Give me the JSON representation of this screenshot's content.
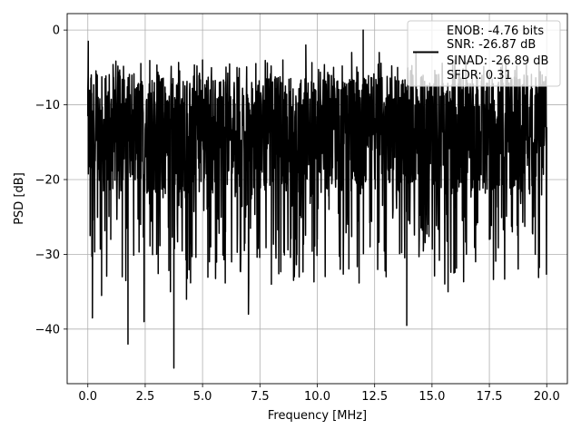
{
  "chart_data": {
    "type": "line",
    "title": "",
    "xlabel": "Frequency [MHz]",
    "ylabel": "PSD [dB]",
    "xlim": [
      -0.9,
      20.9
    ],
    "ylim": [
      -47.3,
      2.2
    ],
    "xticks": [
      0.0,
      2.5,
      5.0,
      7.5,
      10.0,
      12.5,
      15.0,
      17.5,
      20.0
    ],
    "xtick_labels": [
      "0.0",
      "2.5",
      "5.0",
      "7.5",
      "10.0",
      "12.5",
      "15.0",
      "17.5",
      "20.0"
    ],
    "yticks": [
      0,
      -10,
      -20,
      -30,
      -40
    ],
    "ytick_labels": [
      "0",
      "−10",
      "−20",
      "−30",
      "−40"
    ],
    "grid": true,
    "legend_position": "top-right",
    "series": [
      {
        "name": "",
        "color": "#000000",
        "description_points": {
          "x": [
            0.0,
            0.02,
            0.05,
            0.1,
            0.15,
            0.2,
            0.3,
            0.45,
            0.6,
            0.8,
            1.0,
            1.2,
            1.5,
            1.75,
            2.0,
            2.3,
            2.45,
            2.7,
            3.0,
            3.3,
            3.6,
            3.75,
            4.0,
            4.3,
            4.6,
            5.0,
            5.3,
            5.7,
            6.0,
            6.5,
            7.0,
            7.5,
            8.0,
            8.5,
            9.0,
            9.5,
            10.0,
            10.5,
            11.0,
            11.5,
            12.0,
            12.3,
            12.7,
            13.0,
            13.5,
            13.9,
            14.3,
            14.8,
            15.2,
            15.7,
            16.0,
            16.5,
            17.0,
            17.5,
            18.0,
            18.5,
            19.0,
            19.5,
            19.8,
            20.0
          ],
          "y": [
            -8.0,
            -1.5,
            -14.0,
            -27.5,
            -6.0,
            -38.5,
            -20.0,
            -9.0,
            -35.5,
            -14.0,
            -28.0,
            -8.0,
            -33.0,
            -42.0,
            -16.0,
            -26.0,
            -39.0,
            -5.0,
            -30.0,
            -11.0,
            -35.0,
            -45.2,
            -6.0,
            -36.0,
            -18.0,
            -4.0,
            -31.0,
            -9.0,
            -27.0,
            -5.0,
            -38.0,
            -10.0,
            -34.0,
            -4.0,
            -33.0,
            -2.0,
            -28.0,
            -6.0,
            -32.0,
            -3.0,
            0.0,
            -29.0,
            -3.0,
            -33.0,
            -5.0,
            -39.5,
            -3.0,
            -26.0,
            -6.0,
            -35.0,
            -4.0,
            -30.0,
            -8.0,
            -28.0,
            -5.0,
            -27.0,
            -10.0,
            -30.0,
            -6.0,
            -13.0
          ]
        }
      }
    ],
    "legend": {
      "lines": [
        "ENOB: -4.76 bits",
        "SNR: -26.87 dB",
        "SINAD: -26.89 dB",
        "SFDR: 0.31"
      ]
    }
  }
}
